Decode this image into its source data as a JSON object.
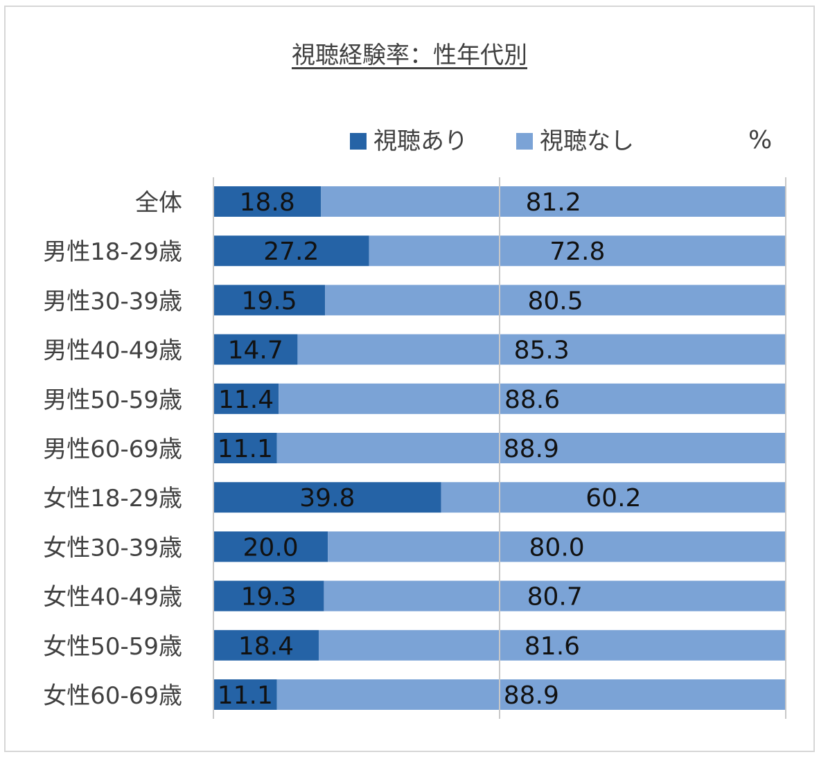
{
  "chart_data": {
    "type": "bar",
    "orientation": "horizontal",
    "stacked": true,
    "title": "視聴経験率：性年代別",
    "unit": "%",
    "xlim": [
      0,
      100
    ],
    "grid": true,
    "legend_position": "top",
    "categories": [
      "全体",
      "男性18-29歳",
      "男性30-39歳",
      "男性40-49歳",
      "男性50-59歳",
      "男性60-69歳",
      "女性18-29歳",
      "女性30-39歳",
      "女性40-49歳",
      "女性50-59歳",
      "女性60-69歳"
    ],
    "series": [
      {
        "name": "視聴あり",
        "color": "#2563a6",
        "values": [
          18.8,
          27.2,
          19.5,
          14.7,
          11.4,
          11.1,
          39.8,
          20.0,
          19.3,
          18.4,
          11.1
        ]
      },
      {
        "name": "視聴なし",
        "color": "#7ba3d6",
        "values": [
          81.2,
          72.8,
          80.5,
          85.3,
          88.6,
          88.9,
          60.2,
          80.0,
          80.7,
          81.6,
          88.9
        ]
      }
    ]
  }
}
